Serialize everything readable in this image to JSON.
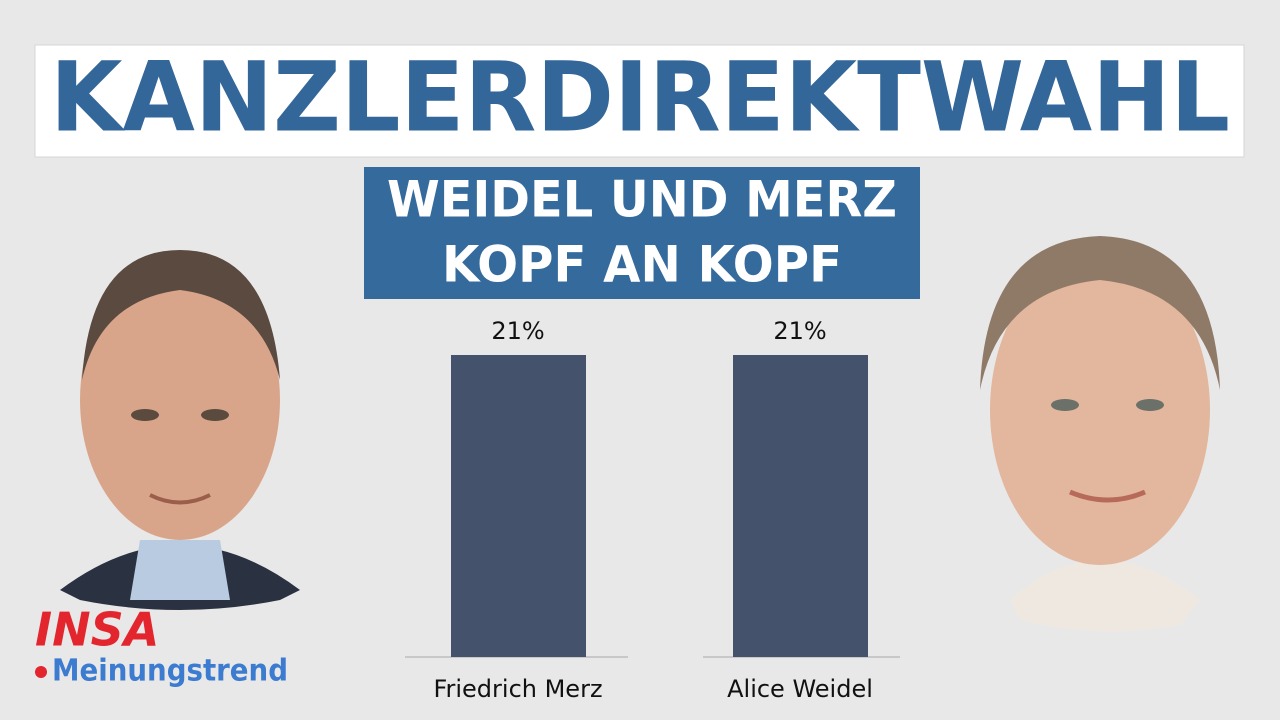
{
  "chart_data": {
    "type": "bar",
    "title": "KANZLERDIREKTWAHL",
    "subtitle": [
      "WEIDEL UND MERZ",
      "KOPF AN KOPF"
    ],
    "categories": [
      "Friedrich Merz",
      "Alice Weidel"
    ],
    "values": [
      21,
      21
    ],
    "value_labels": [
      "21%",
      "21%"
    ],
    "color": "#44536b"
  },
  "logo": {
    "name": "INSA",
    "tagline": "Meinungstrend"
  }
}
